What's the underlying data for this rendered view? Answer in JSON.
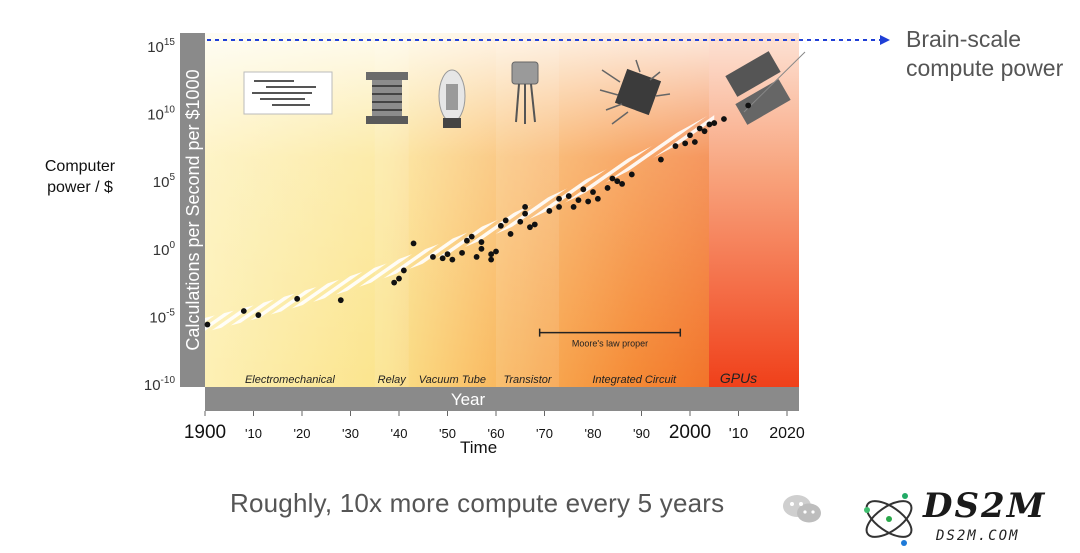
{
  "caption": "Roughly, 10x more compute every 5 years",
  "brain_label_1": "Brain-scale",
  "brain_label_2": "compute power",
  "outer_ylabel_1": "Computer",
  "outer_ylabel_2": "power / $",
  "time_label": "Time",
  "logo": {
    "name": "DS2M",
    "url": "DS2M.COM"
  },
  "colors": {
    "accent_dashed": "#1f3fd6",
    "gpu_red": "#f0401a",
    "axis_gray": "#8a8a8a"
  },
  "chart_data": {
    "type": "scatter",
    "title": "",
    "ylabel": "Calculations per Second per $1000",
    "xlabel": "Year",
    "y_scale": "log10",
    "ylim_exp": [
      -10,
      15
    ],
    "y_ticks": [
      {
        "base": "10",
        "exp": "15"
      },
      {
        "base": "10",
        "exp": "10"
      },
      {
        "base": "10",
        "exp": "5"
      },
      {
        "base": "10",
        "exp": "0"
      },
      {
        "base": "10",
        "exp": "-5"
      },
      {
        "base": "10",
        "exp": "-10"
      }
    ],
    "x_ticks": [
      {
        "year": 1900,
        "label": "1900",
        "big": true
      },
      {
        "year": 1910,
        "label": "'10",
        "big": false
      },
      {
        "year": 1920,
        "label": "'20",
        "big": false
      },
      {
        "year": 1930,
        "label": "'30",
        "big": false
      },
      {
        "year": 1940,
        "label": "'40",
        "big": false
      },
      {
        "year": 1950,
        "label": "'50",
        "big": false
      },
      {
        "year": 1960,
        "label": "'60",
        "big": false
      },
      {
        "year": 1970,
        "label": "'70",
        "big": false
      },
      {
        "year": 1980,
        "label": "'80",
        "big": false
      },
      {
        "year": 1990,
        "label": "'90",
        "big": false
      },
      {
        "year": 2000,
        "label": "2000",
        "big": true
      },
      {
        "year": 2010,
        "label": "'10",
        "big": true
      },
      {
        "year": 2020,
        "label": "2020",
        "big": true
      }
    ],
    "eras": [
      {
        "name": "Electromechanical",
        "start": 1900,
        "end": 1935
      },
      {
        "name": "Relay",
        "start": 1935,
        "end": 1942
      },
      {
        "name": "Vacuum Tube",
        "start": 1942,
        "end": 1960
      },
      {
        "name": "Transistor",
        "start": 1960,
        "end": 1973
      },
      {
        "name": "Integrated Circuit",
        "start": 1973,
        "end": 2004
      },
      {
        "name": "GPUs",
        "start": 2004,
        "end": 2016
      }
    ],
    "annotation": {
      "label": "Moore's law proper",
      "x_start": 1969,
      "x_end": 1998,
      "y_exp": -6.2
    },
    "brain_scale_exp": 15,
    "trend": {
      "start": [
        1900,
        -5.7
      ],
      "end": [
        2005,
        9.6
      ]
    },
    "points": [
      [
        1900.5,
        -5.6
      ],
      [
        1908,
        -4.6
      ],
      [
        1911,
        -4.9
      ],
      [
        1919,
        -3.7
      ],
      [
        1928,
        -3.8
      ],
      [
        1939,
        -2.5
      ],
      [
        1940,
        -2.2
      ],
      [
        1941,
        -1.6
      ],
      [
        1943,
        0.4
      ],
      [
        1947,
        -0.6
      ],
      [
        1949,
        -0.7
      ],
      [
        1950,
        -0.4
      ],
      [
        1951,
        -0.8
      ],
      [
        1953,
        -0.3
      ],
      [
        1954,
        0.6
      ],
      [
        1955,
        0.9
      ],
      [
        1956,
        -0.6
      ],
      [
        1957,
        0.5
      ],
      [
        1957,
        0.0
      ],
      [
        1959,
        -0.8
      ],
      [
        1959,
        -0.4
      ],
      [
        1960,
        -0.2
      ],
      [
        1961,
        1.7
      ],
      [
        1962,
        2.1
      ],
      [
        1963,
        1.1
      ],
      [
        1965,
        2.0
      ],
      [
        1966,
        2.6
      ],
      [
        1966,
        3.1
      ],
      [
        1967,
        1.6
      ],
      [
        1968,
        1.8
      ],
      [
        1971,
        2.8
      ],
      [
        1973,
        3.7
      ],
      [
        1973,
        3.1
      ],
      [
        1975,
        3.9
      ],
      [
        1976,
        3.1
      ],
      [
        1977,
        3.6
      ],
      [
        1978,
        4.4
      ],
      [
        1979,
        3.5
      ],
      [
        1980,
        4.2
      ],
      [
        1981,
        3.7
      ],
      [
        1983,
        4.5
      ],
      [
        1984,
        5.2
      ],
      [
        1985,
        5.0
      ],
      [
        1986,
        4.8
      ],
      [
        1988,
        5.5
      ],
      [
        1994,
        6.6
      ],
      [
        1997,
        7.6
      ],
      [
        1999,
        7.8
      ],
      [
        2000,
        8.4
      ],
      [
        2001,
        7.9
      ],
      [
        2002,
        8.9
      ],
      [
        2003,
        8.7
      ],
      [
        2004,
        9.2
      ],
      [
        2005,
        9.3
      ],
      [
        2007,
        9.6
      ],
      [
        2012,
        10.6
      ]
    ]
  }
}
